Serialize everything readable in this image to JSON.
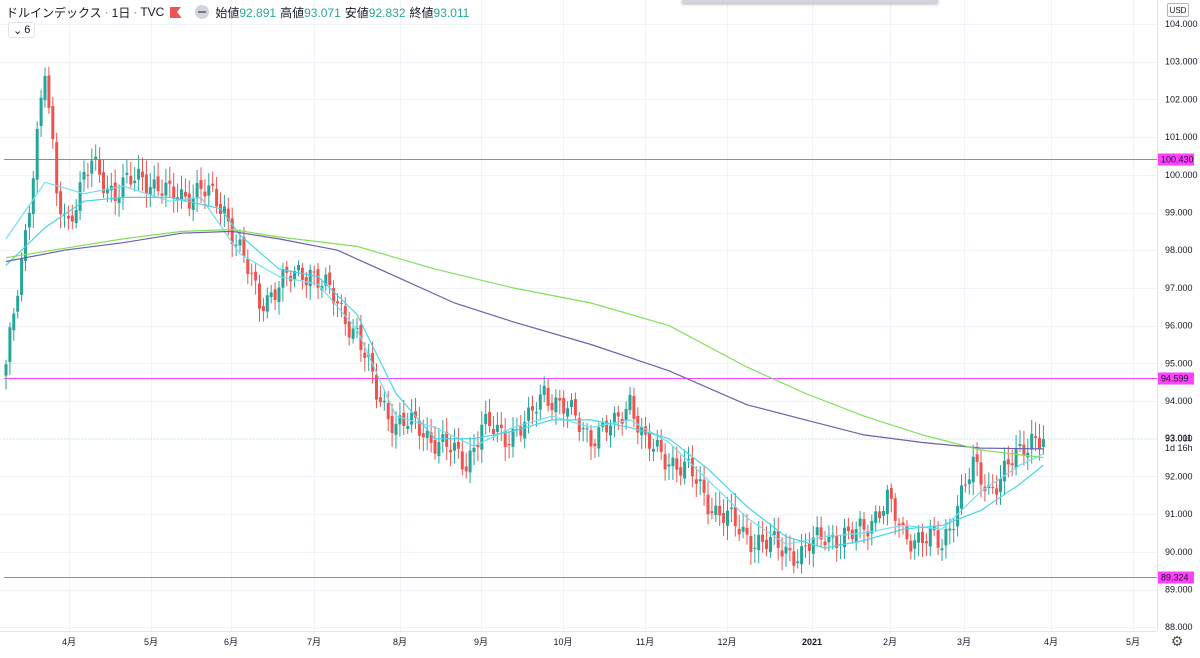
{
  "legend": {
    "symbol": "ドルインデックス",
    "interval": "1日",
    "source": "TVC",
    "open_label": "始値",
    "open": "92.891",
    "high_label": "高値",
    "high": "93.071",
    "low_label": "安値",
    "low": "92.832",
    "close_label": "終値",
    "close": "93.011"
  },
  "indicator_chip": {
    "icon": "chevron-down-icon",
    "count": "6"
  },
  "currency": "USD",
  "last_price": {
    "value": "93.011",
    "countdown": "1d 16h"
  },
  "colors": {
    "up": "#26a69a",
    "down": "#ef5350",
    "ma_fast": "#6fe0f0",
    "ma_mid": "#44d6ea",
    "ma_slow_purple": "#6d5fb0",
    "ma_slow_green": "#7fe05a",
    "hline": "#ff40ff"
  },
  "chart_data": {
    "type": "candlestick",
    "y_axis": {
      "ylim": [
        87.8,
        104.3
      ],
      "ticks": [
        "104.000",
        "103.000",
        "102.000",
        "101.000",
        "100.000",
        "99.000",
        "98.000",
        "97.000",
        "96.000",
        "95.000",
        "94.000",
        "93.000",
        "92.000",
        "91.000",
        "90.000",
        "89.000",
        "88.000"
      ]
    },
    "x_axis": {
      "labels": [
        "4月",
        "5月",
        "6月",
        "7月",
        "8月",
        "9月",
        "10月",
        "11月",
        "12月",
        "2021",
        "2月",
        "3月",
        "4月",
        "5月"
      ]
    },
    "horizontal_lines": [
      {
        "value": 100.43,
        "label": "100.430"
      },
      {
        "value": 94.599,
        "label": "94.599"
      },
      {
        "value": 89.324,
        "label": "89.324"
      }
    ],
    "close_anchors": [
      [
        0,
        94.8
      ],
      [
        5,
        98.5
      ],
      [
        10,
        102.7
      ],
      [
        13,
        99.5
      ],
      [
        16,
        98.8
      ],
      [
        22,
        100.3
      ],
      [
        28,
        99.5
      ],
      [
        35,
        100.0
      ],
      [
        42,
        99.4
      ],
      [
        50,
        99.6
      ],
      [
        56,
        99.1
      ],
      [
        60,
        98.0
      ],
      [
        65,
        96.6
      ],
      [
        70,
        97.1
      ],
      [
        78,
        97.5
      ],
      [
        84,
        96.7
      ],
      [
        90,
        95.8
      ],
      [
        95,
        94.2
      ],
      [
        100,
        93.4
      ],
      [
        106,
        93.3
      ],
      [
        112,
        92.8
      ],
      [
        118,
        92.4
      ],
      [
        122,
        93.3
      ],
      [
        128,
        93.1
      ],
      [
        134,
        93.4
      ],
      [
        138,
        94.3
      ],
      [
        143,
        93.8
      ],
      [
        150,
        93.1
      ],
      [
        156,
        93.3
      ],
      [
        160,
        94.1
      ],
      [
        164,
        92.8
      ],
      [
        170,
        92.5
      ],
      [
        176,
        92.0
      ],
      [
        182,
        91.1
      ],
      [
        188,
        90.6
      ],
      [
        194,
        90.2
      ],
      [
        200,
        90.1
      ],
      [
        204,
        89.9
      ],
      [
        210,
        90.5
      ],
      [
        216,
        90.3
      ],
      [
        222,
        90.9
      ],
      [
        226,
        91.3
      ],
      [
        230,
        90.5
      ],
      [
        236,
        90.3
      ],
      [
        240,
        90.2
      ],
      [
        244,
        91.3
      ],
      [
        248,
        92.2
      ],
      [
        252,
        91.7
      ],
      [
        256,
        92.1
      ],
      [
        260,
        92.6
      ],
      [
        263,
        93.1
      ],
      [
        266,
        93.0
      ]
    ],
    "moving_averages": [
      {
        "period": 10,
        "color": "#6fe0f0",
        "points": [
          [
            0,
            98.3
          ],
          [
            10,
            99.8
          ],
          [
            20,
            99.5
          ],
          [
            30,
            99.7
          ],
          [
            42,
            99.3
          ],
          [
            50,
            99.4
          ],
          [
            60,
            97.9
          ],
          [
            70,
            97.3
          ],
          [
            80,
            97.1
          ],
          [
            90,
            95.9
          ],
          [
            100,
            93.6
          ],
          [
            110,
            93.3
          ],
          [
            120,
            92.8
          ],
          [
            130,
            93.3
          ],
          [
            140,
            93.6
          ],
          [
            150,
            93.3
          ],
          [
            160,
            93.5
          ],
          [
            170,
            92.9
          ],
          [
            180,
            91.9
          ],
          [
            190,
            90.9
          ],
          [
            200,
            90.2
          ],
          [
            210,
            90.4
          ],
          [
            220,
            90.5
          ],
          [
            230,
            90.7
          ],
          [
            240,
            90.6
          ],
          [
            250,
            91.6
          ],
          [
            260,
            92.3
          ],
          [
            266,
            92.6
          ]
        ]
      },
      {
        "period": 20,
        "color": "#44d6ea",
        "points": [
          [
            0,
            97.6
          ],
          [
            10,
            98.6
          ],
          [
            20,
            99.3
          ],
          [
            30,
            99.4
          ],
          [
            42,
            99.4
          ],
          [
            55,
            99.1
          ],
          [
            60,
            98.4
          ],
          [
            70,
            97.5
          ],
          [
            80,
            97.3
          ],
          [
            90,
            96.3
          ],
          [
            100,
            94.2
          ],
          [
            110,
            93.0
          ],
          [
            120,
            93.0
          ],
          [
            130,
            93.2
          ],
          [
            140,
            93.5
          ],
          [
            150,
            93.5
          ],
          [
            160,
            93.3
          ],
          [
            170,
            93.0
          ],
          [
            180,
            92.2
          ],
          [
            190,
            91.2
          ],
          [
            200,
            90.4
          ],
          [
            210,
            90.1
          ],
          [
            220,
            90.3
          ],
          [
            230,
            90.6
          ],
          [
            240,
            90.7
          ],
          [
            250,
            91.1
          ],
          [
            260,
            91.8
          ],
          [
            266,
            92.3
          ]
        ]
      },
      {
        "period": 100,
        "color": "#6d5fb0",
        "points": [
          [
            0,
            97.7
          ],
          [
            15,
            98.0
          ],
          [
            30,
            98.2
          ],
          [
            45,
            98.45
          ],
          [
            58,
            98.5
          ],
          [
            70,
            98.3
          ],
          [
            85,
            98.0
          ],
          [
            100,
            97.3
          ],
          [
            115,
            96.6
          ],
          [
            130,
            96.1
          ],
          [
            150,
            95.5
          ],
          [
            170,
            94.8
          ],
          [
            190,
            93.9
          ],
          [
            205,
            93.5
          ],
          [
            220,
            93.1
          ],
          [
            235,
            92.9
          ],
          [
            250,
            92.75
          ],
          [
            266,
            92.73
          ]
        ]
      },
      {
        "period": 200,
        "color": "#7fe05a",
        "points": [
          [
            0,
            97.8
          ],
          [
            15,
            98.05
          ],
          [
            30,
            98.3
          ],
          [
            45,
            98.5
          ],
          [
            58,
            98.55
          ],
          [
            70,
            98.35
          ],
          [
            90,
            98.1
          ],
          [
            110,
            97.5
          ],
          [
            130,
            97.0
          ],
          [
            150,
            96.6
          ],
          [
            170,
            96.0
          ],
          [
            190,
            94.9
          ],
          [
            205,
            94.2
          ],
          [
            220,
            93.6
          ],
          [
            235,
            93.1
          ],
          [
            250,
            92.7
          ],
          [
            266,
            92.5
          ]
        ]
      }
    ]
  }
}
